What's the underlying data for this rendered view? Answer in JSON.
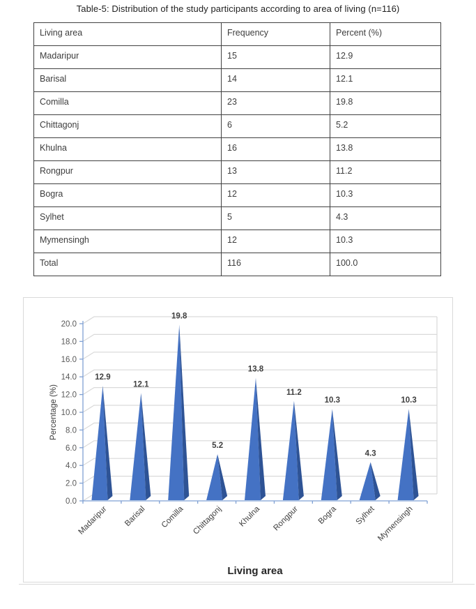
{
  "page": {
    "title": "Table-5: Distribution of the study participants according to area of living (n=116)"
  },
  "table": {
    "columns": [
      "Living area",
      "Frequency",
      "Percent (%)"
    ],
    "rows": [
      [
        "Madaripur",
        "15",
        "12.9"
      ],
      [
        "Barisal",
        "14",
        "12.1"
      ],
      [
        "Comilla",
        "23",
        "19.8"
      ],
      [
        "Chittagonj",
        "6",
        "5.2"
      ],
      [
        "Khulna",
        "16",
        "13.8"
      ],
      [
        "Rongpur",
        "13",
        "11.2"
      ],
      [
        "Bogra",
        "12",
        "10.3"
      ],
      [
        "Sylhet",
        "5",
        "4.3"
      ],
      [
        "Mymensingh",
        "12",
        "10.3"
      ],
      [
        "Total",
        "116",
        "100.0"
      ]
    ]
  },
  "chart_data": {
    "type": "bar",
    "subtype": "3d-cone",
    "categories": [
      "Madaripur",
      "Barisal",
      "Comilla",
      "Chittagonj",
      "Khulna",
      "Rongpur",
      "Bogra",
      "Sylhet",
      "Mymensingh"
    ],
    "values": [
      12.9,
      12.1,
      19.8,
      5.2,
      13.8,
      11.2,
      10.3,
      4.3,
      10.3
    ],
    "data_labels": [
      "12.9",
      "12.1",
      "19.8",
      "5.2",
      "13.8",
      "11.2",
      "10.3",
      "4.3",
      "10.3"
    ],
    "title": "",
    "xlabel": "Living area",
    "ylabel": "Percentage (%)",
    "ylim": [
      0,
      20
    ],
    "ytick_step": 2,
    "ytick_labels": [
      "0.0",
      "2.0",
      "4.0",
      "6.0",
      "8.0",
      "10.0",
      "12.0",
      "14.0",
      "16.0",
      "18.0",
      "20.0"
    ],
    "grid": true,
    "legend": false,
    "colors": {
      "bar_front": "#4472C4",
      "bar_side": "#2E5395",
      "axis_line": "#7FA0D4",
      "gridline": "#D9D9D9",
      "tick_text": "#595959",
      "data_label_text": "#3F3F3F",
      "axis_title_text": "#262626"
    }
  }
}
